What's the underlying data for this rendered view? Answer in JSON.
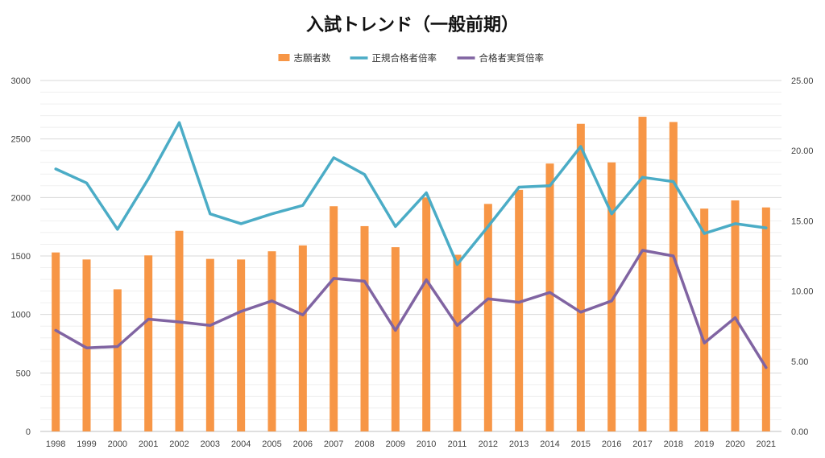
{
  "chart_data": {
    "type": "bar+line",
    "title": "入試トレンド（一般前期）",
    "legend_position": "top",
    "grid": true,
    "categories": [
      "1998",
      "1999",
      "2000",
      "2001",
      "2002",
      "2003",
      "2004",
      "2005",
      "2006",
      "2007",
      "2008",
      "2009",
      "2010",
      "2011",
      "2012",
      "2013",
      "2014",
      "2015",
      "2016",
      "2017",
      "2018",
      "2019",
      "2020",
      "2021"
    ],
    "y_left": {
      "range": [
        0,
        3000
      ],
      "ticks": [
        "0",
        "500",
        "1000",
        "1500",
        "2000",
        "2500",
        "3000"
      ]
    },
    "y_right": {
      "range": [
        0,
        25
      ],
      "ticks": [
        "0.00",
        "5.00",
        "10.00",
        "15.00",
        "20.00",
        "25.00"
      ]
    },
    "series": [
      {
        "name": "志願者数",
        "type": "bar",
        "axis": "left",
        "color": "#F79646",
        "values": [
          1530,
          1470,
          1215,
          1505,
          1715,
          1475,
          1470,
          1540,
          1590,
          1925,
          1755,
          1575,
          2000,
          1510,
          1945,
          2065,
          2290,
          2630,
          2300,
          2690,
          2645,
          1905,
          1975,
          1915
        ]
      },
      {
        "name": "正規合格者倍率",
        "type": "line",
        "axis": "right",
        "color": "#4BACC6",
        "values": [
          18.7,
          17.7,
          14.4,
          18.0,
          22.0,
          15.5,
          14.8,
          15.5,
          16.1,
          19.5,
          18.3,
          14.6,
          17.0,
          11.9,
          14.6,
          17.4,
          17.5,
          20.3,
          15.5,
          18.1,
          17.8,
          14.1,
          14.8,
          14.5
        ]
      },
      {
        "name": "合格者実質倍率",
        "type": "line",
        "axis": "right",
        "color": "#8064A2",
        "values": [
          7.2,
          5.95,
          6.05,
          8.0,
          7.8,
          7.55,
          8.55,
          9.3,
          8.3,
          10.9,
          10.7,
          7.2,
          10.8,
          7.55,
          9.45,
          9.2,
          9.9,
          8.5,
          9.3,
          12.9,
          12.5,
          6.3,
          8.1,
          4.55
        ]
      }
    ]
  }
}
